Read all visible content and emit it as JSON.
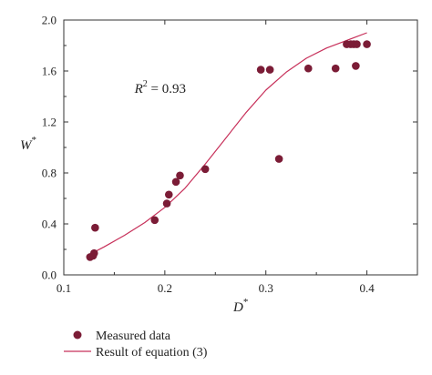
{
  "chart_data": {
    "type": "scatter",
    "xlabel": "D",
    "xlabel_sup": "*",
    "ylabel": "W",
    "ylabel_sup": "*",
    "xlim": [
      0.1,
      0.45
    ],
    "ylim": [
      0.0,
      2.0
    ],
    "xticks": [
      "0.1",
      "0.2",
      "0.3",
      "0.4"
    ],
    "xtick_values": [
      0.1,
      0.2,
      0.3,
      0.4
    ],
    "yticks": [
      "0.0",
      "0.4",
      "0.8",
      "1.2",
      "1.6",
      "2.0"
    ],
    "ytick_values": [
      0.0,
      0.4,
      0.8,
      1.2,
      1.6,
      2.0
    ],
    "annotation": {
      "prefix": "R",
      "sup": "2",
      "suffix": " = 0.93",
      "x": 0.17,
      "y": 1.43
    },
    "series": [
      {
        "name": "Measured data",
        "kind": "scatter",
        "color": "#7b1c36",
        "points": [
          [
            0.126,
            0.14
          ],
          [
            0.129,
            0.15
          ],
          [
            0.13,
            0.17
          ],
          [
            0.131,
            0.37
          ],
          [
            0.19,
            0.43
          ],
          [
            0.202,
            0.56
          ],
          [
            0.204,
            0.63
          ],
          [
            0.211,
            0.73
          ],
          [
            0.215,
            0.78
          ],
          [
            0.24,
            0.83
          ],
          [
            0.295,
            1.61
          ],
          [
            0.304,
            1.61
          ],
          [
            0.313,
            0.91
          ],
          [
            0.342,
            1.62
          ],
          [
            0.369,
            1.62
          ],
          [
            0.38,
            1.81
          ],
          [
            0.384,
            1.81
          ],
          [
            0.387,
            1.81
          ],
          [
            0.389,
            1.64
          ],
          [
            0.39,
            1.81
          ],
          [
            0.4,
            1.81
          ]
        ]
      },
      {
        "name": "Result of equation (3)",
        "kind": "line",
        "color": "#c7305a",
        "points": [
          [
            0.128,
            0.17
          ],
          [
            0.14,
            0.22
          ],
          [
            0.16,
            0.31
          ],
          [
            0.18,
            0.41
          ],
          [
            0.2,
            0.53
          ],
          [
            0.22,
            0.68
          ],
          [
            0.24,
            0.87
          ],
          [
            0.26,
            1.07
          ],
          [
            0.28,
            1.27
          ],
          [
            0.3,
            1.45
          ],
          [
            0.32,
            1.59
          ],
          [
            0.34,
            1.7
          ],
          [
            0.36,
            1.78
          ],
          [
            0.38,
            1.84
          ],
          [
            0.4,
            1.9
          ]
        ]
      }
    ]
  }
}
